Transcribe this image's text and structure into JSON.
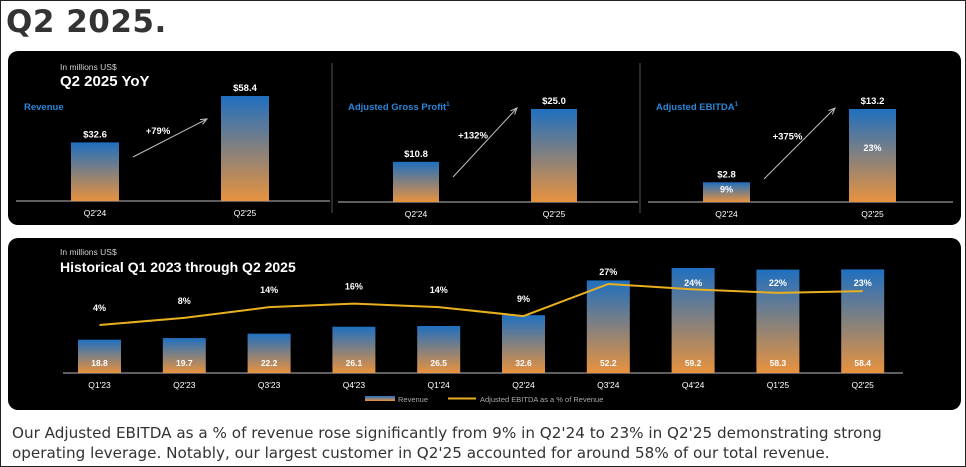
{
  "page": {
    "title": "Q2 2025.",
    "footnote": "Our Adjusted EBITDA as a % of revenue rose significantly from 9% in Q2'24 to 23% in Q2'25 demonstrating strong operating leverage. Notably, our largest customer in Q2'25 accounted for around 58% of our total revenue."
  },
  "colors": {
    "panel_bg": "#000000",
    "bar_top": "#1f6fc0",
    "bar_bottom": "#e8923e",
    "line": "#e8b020",
    "metric_label": "#2b86d8",
    "text": "#ffffff"
  },
  "chart_data": [
    {
      "type": "bar",
      "unit_note": "In millions US$",
      "title": "Q2 2025 YoY",
      "series_label": "Revenue",
      "categories": [
        "Q2'24",
        "Q2'25"
      ],
      "values": [
        32.6,
        58.4
      ],
      "value_labels": [
        "$32.6",
        "$58.4"
      ],
      "growth_label": "+79%"
    },
    {
      "type": "bar",
      "series_label": "Adjusted Gross Profit",
      "footnote_marker": "1",
      "categories": [
        "Q2'24",
        "Q2'25"
      ],
      "values": [
        10.8,
        25.0
      ],
      "value_labels": [
        "$10.8",
        "$25.0"
      ],
      "growth_label": "+132%"
    },
    {
      "type": "bar",
      "series_label": "Adjusted EBITDA",
      "footnote_marker": "1",
      "categories": [
        "Q2'24",
        "Q2'25"
      ],
      "values": [
        2.8,
        13.2
      ],
      "value_labels": [
        "$2.8",
        "$13.2"
      ],
      "margin_labels": [
        "9%",
        "23%"
      ],
      "growth_label": "+375%"
    },
    {
      "type": "bar+line",
      "unit_note": "In millions US$",
      "title": "Historical Q1 2023 through Q2 2025",
      "categories": [
        "Q1'23",
        "Q2'23",
        "Q3'23",
        "Q4'23",
        "Q1'24",
        "Q2'24",
        "Q3'24",
        "Q4'24",
        "Q1'25",
        "Q2'25"
      ],
      "series": [
        {
          "name": "Revenue",
          "kind": "bar",
          "values": [
            18.8,
            19.7,
            22.2,
            26.1,
            26.5,
            32.6,
            52.2,
            59.2,
            58.3,
            58.4
          ],
          "labels": [
            "18.8",
            "19.7",
            "22.2",
            "26.1",
            "26.5",
            "32.6",
            "52.2",
            "59.2",
            "58.3",
            "58.4"
          ]
        },
        {
          "name": "Adjusted EBITDA as a % of Revenue",
          "kind": "line",
          "values": [
            4,
            8,
            14,
            16,
            14,
            9,
            27,
            24,
            22,
            23
          ],
          "labels": [
            "4%",
            "8%",
            "14%",
            "16%",
            "14%",
            "9%",
            "27%",
            "24%",
            "22%",
            "23%"
          ]
        }
      ],
      "legend_position": "bottom-center"
    }
  ]
}
